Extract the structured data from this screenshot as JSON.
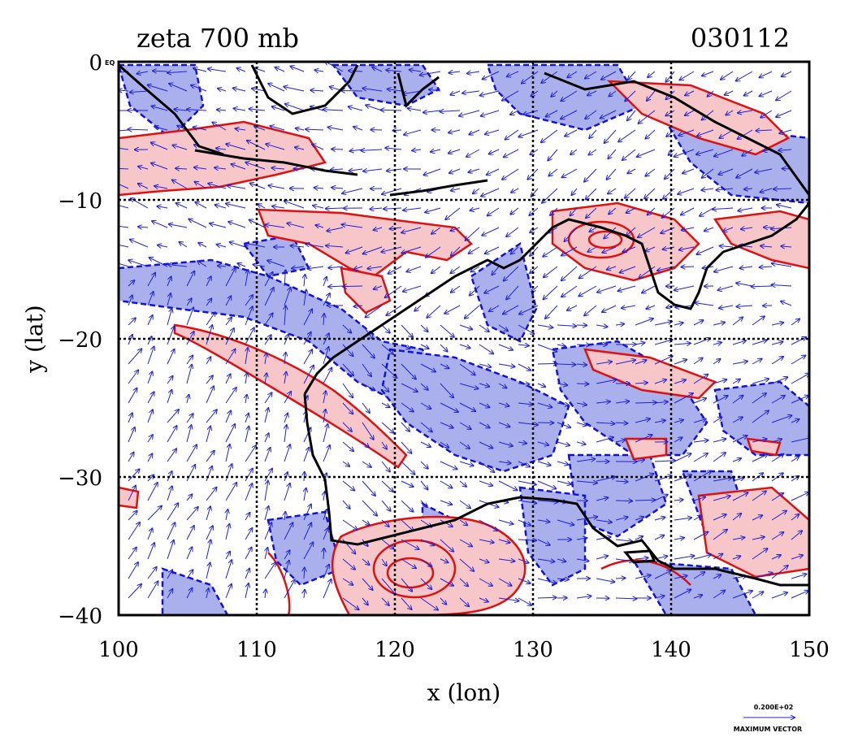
{
  "title_left": "zeta 700 mb",
  "title_right": "030112",
  "x_axis": {
    "label": "x (lon)",
    "range": [
      100,
      150
    ],
    "ticks": [
      100,
      110,
      120,
      130,
      140,
      150
    ],
    "tick_labels": [
      "100",
      "110",
      "120",
      "130",
      "140",
      "150"
    ]
  },
  "y_axis": {
    "label": "y (lat)",
    "range": [
      -40,
      0
    ],
    "ticks": [
      0,
      -10,
      -20,
      -30,
      -40
    ],
    "tick_labels": [
      "0",
      "−10",
      "−20",
      "−30",
      "−40"
    ],
    "corner_mark": "EQ"
  },
  "vector_legend": {
    "value": "0.200E+02",
    "caption": "MAXIMUM VECTOR"
  },
  "colors": {
    "positive_fill": "#f7c6c8",
    "positive_line": "#e01010",
    "negative_fill": "#aab0ec",
    "negative_line": "#1010e0",
    "vector": "#2020d8",
    "coast": "#000000",
    "grid": "#000000"
  },
  "grid": "dotted at every 10 degrees",
  "field": "relative vorticity (zeta) at 700 mb, shaded contours with wind vectors"
}
